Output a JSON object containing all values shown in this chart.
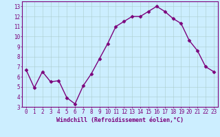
{
  "x": [
    0,
    1,
    2,
    3,
    4,
    5,
    6,
    7,
    8,
    9,
    10,
    11,
    12,
    13,
    14,
    15,
    16,
    17,
    18,
    19,
    20,
    21,
    22,
    23
  ],
  "y": [
    6.7,
    4.9,
    6.5,
    5.5,
    5.6,
    3.9,
    3.3,
    5.1,
    6.3,
    7.8,
    9.3,
    11.0,
    11.5,
    12.0,
    12.0,
    12.5,
    13.0,
    12.5,
    11.8,
    11.3,
    9.6,
    8.6,
    7.0,
    6.5
  ],
  "line_color": "#7B007B",
  "marker": "D",
  "marker_size": 2.5,
  "linewidth": 1.0,
  "bg_color": "#cceeff",
  "grid_color": "#aacccc",
  "xlabel": "Windchill (Refroidissement éolien,°C)",
  "xlabel_color": "#7B007B",
  "xlabel_fontsize": 6.0,
  "xtick_labels": [
    "0",
    "1",
    "2",
    "3",
    "4",
    "5",
    "6",
    "7",
    "8",
    "9",
    "10",
    "11",
    "12",
    "13",
    "14",
    "15",
    "16",
    "17",
    "18",
    "19",
    "20",
    "21",
    "22",
    "23"
  ],
  "ytick_labels": [
    "3",
    "4",
    "5",
    "6",
    "7",
    "8",
    "9",
    "10",
    "11",
    "12",
    "13"
  ],
  "ylim": [
    3,
    13.5
  ],
  "xlim": [
    -0.5,
    23.5
  ],
  "tick_color": "#7B007B",
  "tick_fontsize": 5.5,
  "spine_color": "#7B007B"
}
